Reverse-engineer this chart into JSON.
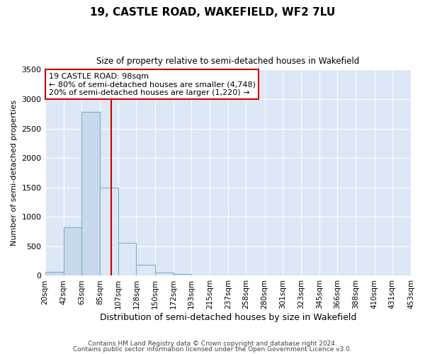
{
  "title": "19, CASTLE ROAD, WAKEFIELD, WF2 7LU",
  "subtitle": "Size of property relative to semi-detached houses in Wakefield",
  "xlabel": "Distribution of semi-detached houses by size in Wakefield",
  "ylabel": "Number of semi-detached properties",
  "footnote1": "Contains HM Land Registry data © Crown copyright and database right 2024.",
  "footnote2": "Contains public sector information licensed under the Open Government Licence v3.0.",
  "property_label": "19 CASTLE ROAD: 98sqm",
  "annotation_line1": "← 80% of semi-detached houses are smaller (4,748)",
  "annotation_line2": "20% of semi-detached houses are larger (1,220) →",
  "property_sqm": 98,
  "bar_left_color": "#c8d9ee",
  "bar_right_color": "#dde8f4",
  "bar_edge_color": "#7bafd4",
  "vline_color": "#cc0000",
  "annotation_box_color": "#ffffff",
  "annotation_box_edge": "#cc0000",
  "background_color": "#dce8f5",
  "bins": [
    20,
    42,
    63,
    85,
    107,
    128,
    150,
    172,
    193,
    215,
    237,
    258,
    280,
    301,
    323,
    345,
    366,
    388,
    410,
    431,
    453
  ],
  "counts": [
    60,
    820,
    2780,
    1500,
    560,
    190,
    55,
    30,
    0,
    0,
    0,
    0,
    0,
    0,
    0,
    0,
    0,
    0,
    0,
    0
  ],
  "ylim": [
    0,
    3500
  ],
  "yticks": [
    0,
    500,
    1000,
    1500,
    2000,
    2500,
    3000,
    3500
  ],
  "figsize": [
    6.0,
    5.0
  ],
  "dpi": 100
}
